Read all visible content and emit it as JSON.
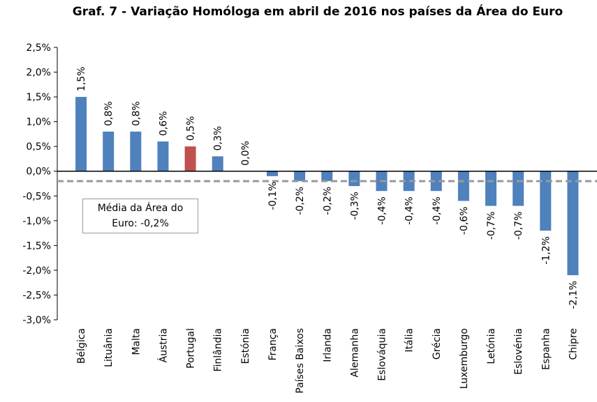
{
  "chart_data": {
    "type": "bar",
    "title": "Graf. 7 - Variação Homóloga em abril de 2016 nos países da Área do Euro",
    "categories": [
      "Bélgica",
      "Lituânia",
      "Malta",
      "Áustria",
      "Portugal",
      "Finlândia",
      "Estónia",
      "França",
      "Países Baixos",
      "Irlanda",
      "Alemanha",
      "Eslováquia",
      "Itália",
      "Grécia",
      "Luxemburgo",
      "Letónia",
      "Eslovénia",
      "Espanha",
      "Chipre"
    ],
    "values": [
      1.5,
      0.8,
      0.8,
      0.6,
      0.5,
      0.3,
      0.0,
      -0.1,
      -0.2,
      -0.2,
      -0.3,
      -0.4,
      -0.4,
      -0.4,
      -0.6,
      -0.7,
      -0.7,
      -1.2,
      -2.1
    ],
    "value_labels": [
      "1,5%",
      "0,8%",
      "0,8%",
      "0,6%",
      "0,5%",
      "0,3%",
      "0,0%",
      "-0,1%",
      "-0,2%",
      "-0,2%",
      "-0,3%",
      "-0,4%",
      "-0,4%",
      "-0,4%",
      "-0,6%",
      "-0,7%",
      "-0,7%",
      "-1,2%",
      "-2,1%"
    ],
    "colors": [
      "#4f81bd",
      "#4f81bd",
      "#4f81bd",
      "#4f81bd",
      "#c0504d",
      "#4f81bd",
      "#4f81bd",
      "#4f81bd",
      "#4f81bd",
      "#4f81bd",
      "#4f81bd",
      "#4f81bd",
      "#4f81bd",
      "#4f81bd",
      "#4f81bd",
      "#4f81bd",
      "#4f81bd",
      "#4f81bd",
      "#4f81bd"
    ],
    "ylim": [
      -3,
      2.5
    ],
    "yticks": [
      {
        "value": -3,
        "label": "-3,0%"
      },
      {
        "value": -2.5,
        "label": "-2,5%"
      },
      {
        "value": -2,
        "label": "-2,0%"
      },
      {
        "value": -1.5,
        "label": "-1,5%"
      },
      {
        "value": -1,
        "label": "-1,0%"
      },
      {
        "value": -0.5,
        "label": "-0,5%"
      },
      {
        "value": 0,
        "label": "0,0%"
      },
      {
        "value": 0.5,
        "label": "0,5%"
      },
      {
        "value": 1,
        "label": "1,0%"
      },
      {
        "value": 1.5,
        "label": "1,5%"
      },
      {
        "value": 2,
        "label": "2,0%"
      },
      {
        "value": 2.5,
        "label": "2,5%"
      }
    ],
    "reference_line": {
      "value": -0.2,
      "label": "Média da Área do Euro: -0,2%"
    }
  }
}
